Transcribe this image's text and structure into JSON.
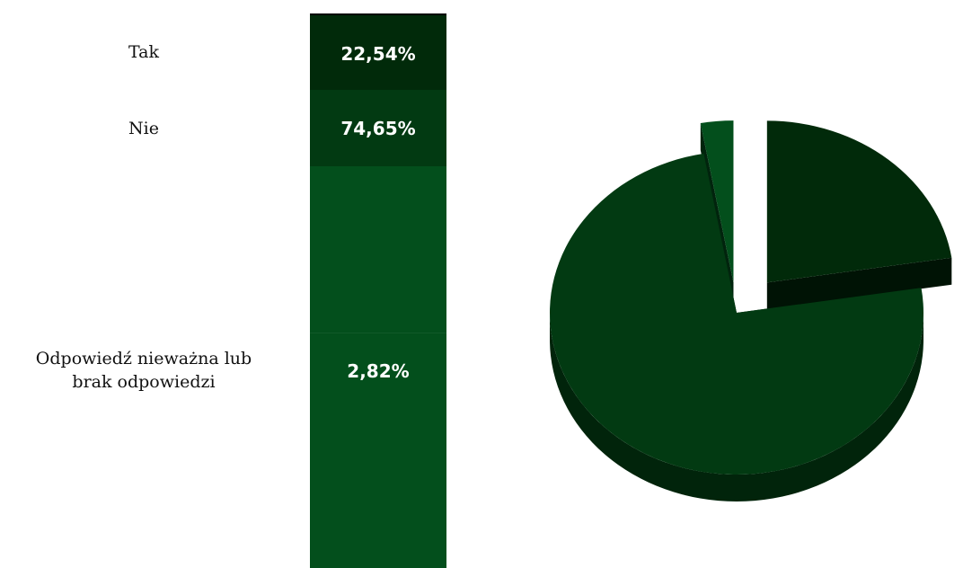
{
  "chart_data": {
    "type": "pie",
    "categories": [
      "Tak",
      "Nie",
      "Odpowiedź nieważna lub\nbrak odpowiedzi"
    ],
    "values": [
      22.54,
      74.65,
      2.82
    ],
    "value_labels": [
      "22,54%",
      "74,65%",
      "2,82%"
    ],
    "colors": [
      "#012a0a",
      "#023a12",
      "#034f1c"
    ],
    "exploded": true,
    "three_d": true,
    "legend_placement": "left"
  }
}
